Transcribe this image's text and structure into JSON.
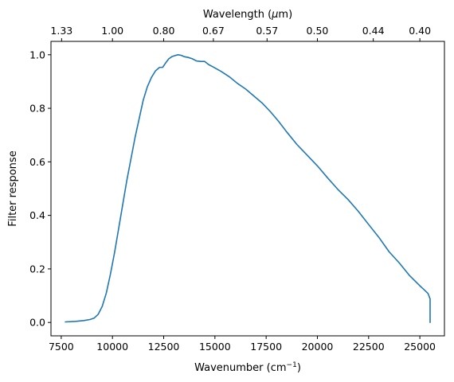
{
  "chart_data": {
    "type": "line",
    "title": "",
    "xlabel": "Wavenumber (cm",
    "xlabel_superscript": "−1",
    "xlabel_close": ")",
    "ylabel": "Filter response",
    "top_axis_label_prefix": "Wavelength (",
    "top_axis_label_symbol": "μ",
    "top_axis_label_suffix": "m)",
    "xlim": [
      7000,
      26200
    ],
    "ylim": [
      -0.05,
      1.05
    ],
    "xticks": [
      {
        "value": 7500,
        "label": "7500"
      },
      {
        "value": 10000,
        "label": "10000"
      },
      {
        "value": 12500,
        "label": "12500"
      },
      {
        "value": 15000,
        "label": "15000"
      },
      {
        "value": 17500,
        "label": "17500"
      },
      {
        "value": 20000,
        "label": "20000"
      },
      {
        "value": 22500,
        "label": "22500"
      },
      {
        "value": 25000,
        "label": "25000"
      }
    ],
    "yticks": [
      {
        "value": 0.0,
        "label": "0.0"
      },
      {
        "value": 0.2,
        "label": "0.2"
      },
      {
        "value": 0.4,
        "label": "0.4"
      },
      {
        "value": 0.6,
        "label": "0.6"
      },
      {
        "value": 0.8,
        "label": "0.8"
      },
      {
        "value": 1.0,
        "label": "1.0"
      }
    ],
    "top_ticks": [
      {
        "value": 7519,
        "label": "1.33"
      },
      {
        "value": 10000,
        "label": "1.00"
      },
      {
        "value": 12500,
        "label": "0.80"
      },
      {
        "value": 14925,
        "label": "0.67"
      },
      {
        "value": 17544,
        "label": "0.57"
      },
      {
        "value": 20000,
        "label": "0.50"
      },
      {
        "value": 22727,
        "label": "0.44"
      },
      {
        "value": 25000,
        "label": "0.40"
      }
    ],
    "grid": false,
    "series": [
      {
        "color": "#1f77b4",
        "x": [
          7700,
          8200,
          8600,
          8900,
          9100,
          9300,
          9500,
          9700,
          9900,
          10100,
          10300,
          10500,
          10700,
          10900,
          11100,
          11300,
          11500,
          11700,
          11900,
          12100,
          12300,
          12450,
          12600,
          12750,
          12900,
          13050,
          13200,
          13350,
          13500,
          13700,
          13900,
          14100,
          14300,
          14500,
          14700,
          14900,
          15300,
          15700,
          16100,
          16500,
          16900,
          17300,
          17700,
          18100,
          18500,
          19000,
          19500,
          20000,
          20500,
          21000,
          21500,
          22000,
          22500,
          23000,
          23500,
          24000,
          24500,
          25000,
          25200,
          25400,
          25500,
          25500
        ],
        "y": [
          0.002,
          0.004,
          0.007,
          0.011,
          0.016,
          0.03,
          0.06,
          0.11,
          0.18,
          0.26,
          0.35,
          0.44,
          0.53,
          0.61,
          0.69,
          0.76,
          0.83,
          0.88,
          0.915,
          0.94,
          0.953,
          0.953,
          0.97,
          0.985,
          0.993,
          0.997,
          1.0,
          0.998,
          0.993,
          0.99,
          0.985,
          0.977,
          0.975,
          0.975,
          0.963,
          0.955,
          0.938,
          0.918,
          0.893,
          0.872,
          0.846,
          0.82,
          0.788,
          0.752,
          0.712,
          0.665,
          0.625,
          0.585,
          0.54,
          0.497,
          0.459,
          0.415,
          0.366,
          0.318,
          0.264,
          0.222,
          0.175,
          0.137,
          0.123,
          0.108,
          0.088,
          0.0
        ]
      }
    ]
  }
}
